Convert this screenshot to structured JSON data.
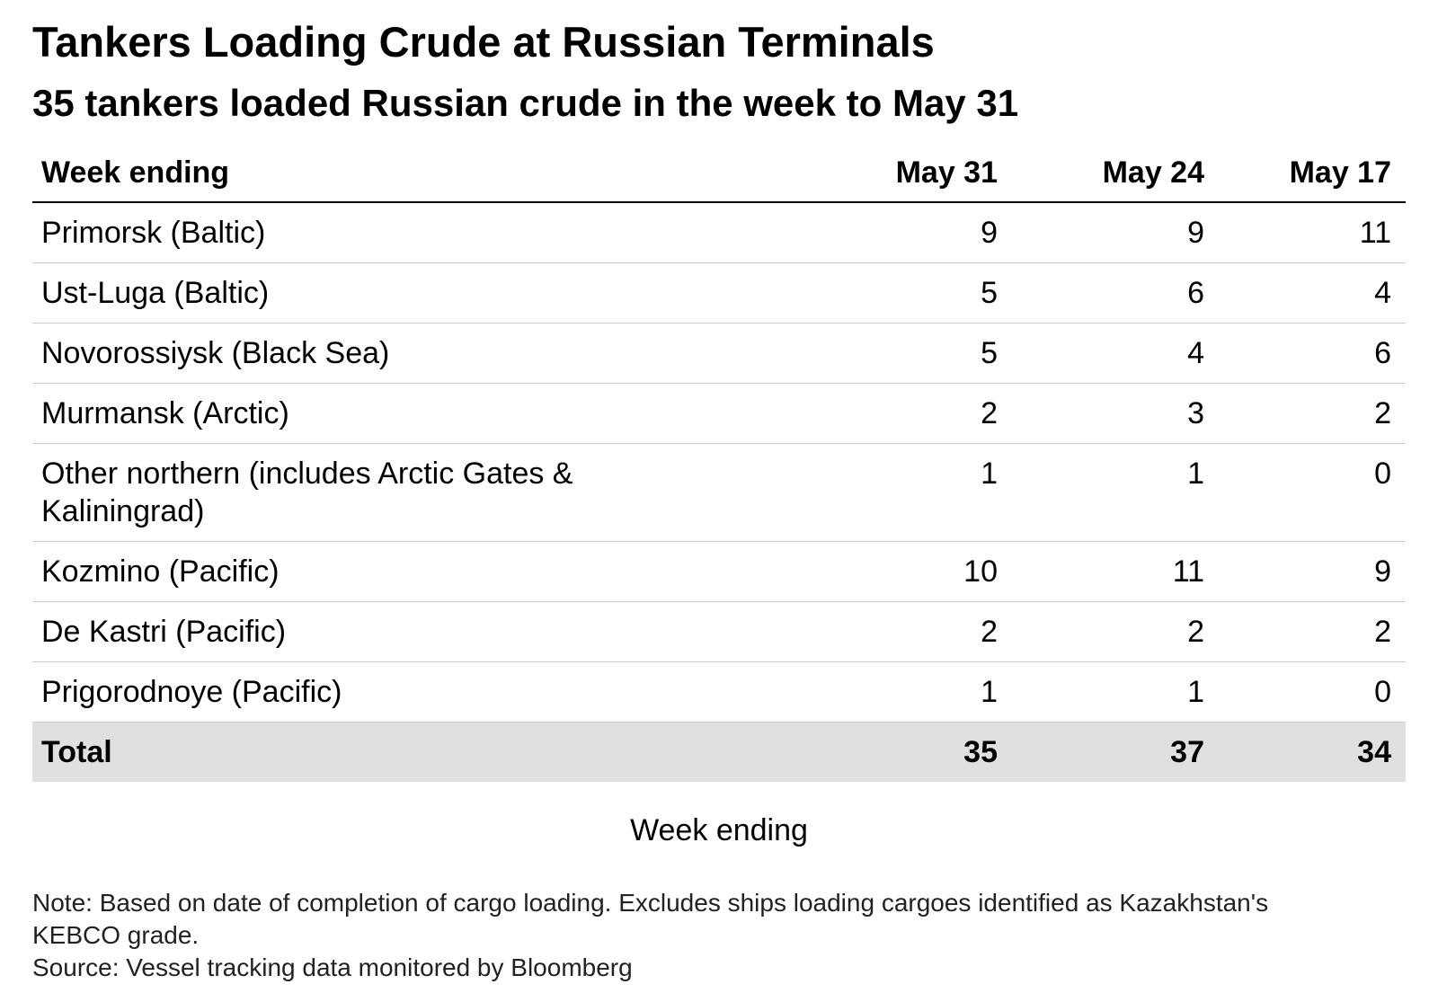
{
  "title": "Tankers Loading Crude at Russian Terminals",
  "subtitle": "35 tankers loaded Russian crude in the week to May 31",
  "note": "Note: Based on date of completion of cargo loading. Excludes ships loading cargoes identified as Kazakhstan's KEBCO grade.",
  "source": "Source: Vessel tracking data monitored by Bloomberg",
  "chart_data": {
    "type": "table",
    "title": "Tankers Loading Crude at Russian Terminals",
    "subtitle": "35 tankers loaded Russian crude in the week to May 31",
    "xlabel": "Week ending",
    "header": [
      "Week ending",
      "May 31",
      "May 24",
      "May 17"
    ],
    "rows": [
      {
        "label": "Primorsk (Baltic)",
        "values": [
          "9",
          "9",
          "11"
        ]
      },
      {
        "label": "Ust-Luga (Baltic)",
        "values": [
          "5",
          "6",
          "4"
        ]
      },
      {
        "label": "Novorossiysk (Black Sea)",
        "values": [
          "5",
          "4",
          "6"
        ]
      },
      {
        "label": "Murmansk (Arctic)",
        "values": [
          "2",
          "3",
          "2"
        ]
      },
      {
        "label": "Other northern (includes Arctic Gates & Kaliningrad)",
        "values": [
          "1",
          "1",
          "0"
        ]
      },
      {
        "label": "Kozmino (Pacific)",
        "values": [
          "10",
          "11",
          "9"
        ]
      },
      {
        "label": "De Kastri (Pacific)",
        "values": [
          "2",
          "2",
          "2"
        ]
      },
      {
        "label": "Prigorodnoye (Pacific)",
        "values": [
          "1",
          "1",
          "0"
        ]
      }
    ],
    "total": {
      "label": "Total",
      "values": [
        "35",
        "37",
        "34"
      ]
    }
  }
}
